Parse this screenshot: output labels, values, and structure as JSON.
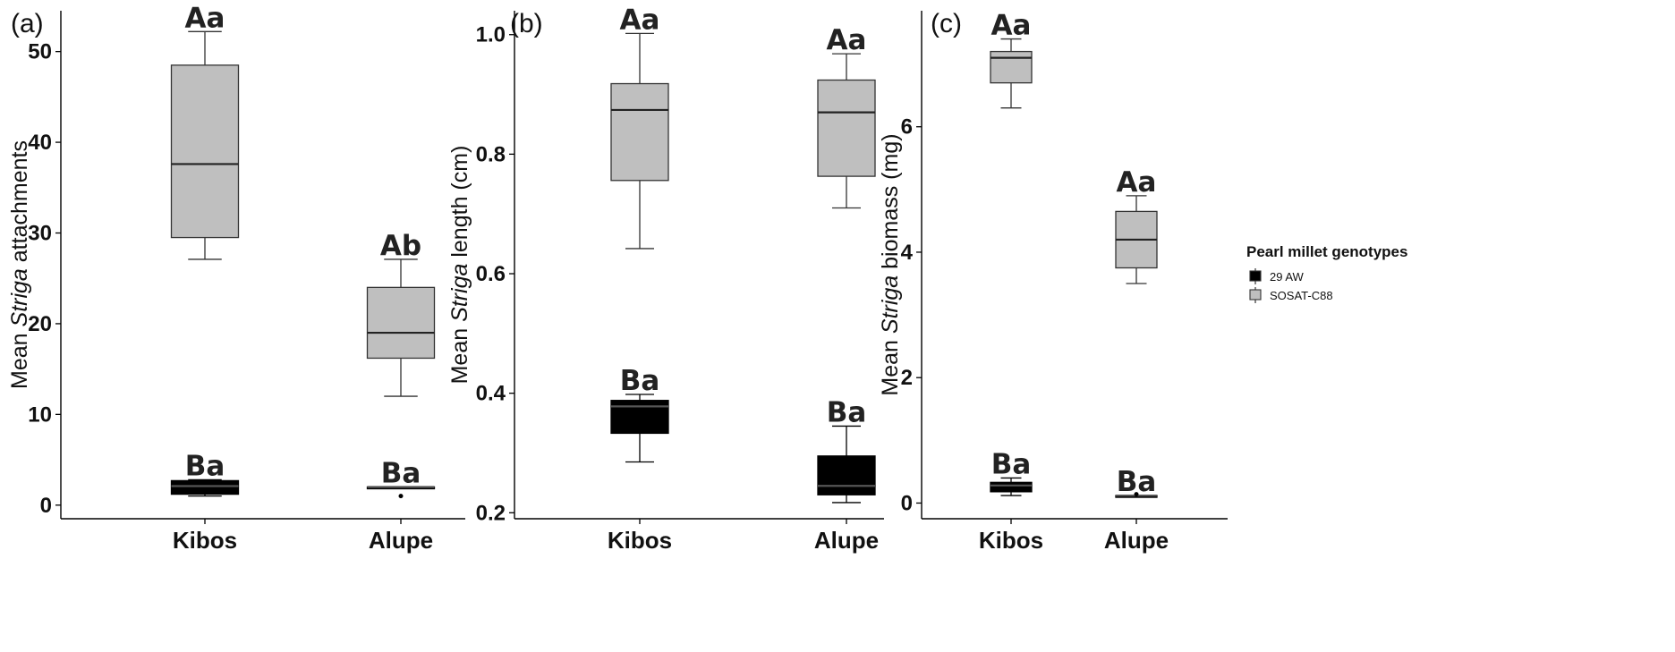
{
  "colors": {
    "black_box": "#000000",
    "grey_box": "#bfbfbf",
    "grey_line": "#333333",
    "axis": "#000000"
  },
  "legend": {
    "title": "Pearl millet genotypes",
    "items": [
      {
        "label": "29 AW",
        "color": "#000000"
      },
      {
        "label": "SOSAT-C88",
        "color": "#bfbfbf"
      }
    ]
  },
  "chart_data": [
    {
      "type": "box",
      "panel_label": "(a)",
      "ylabel_prefix": "Mean ",
      "ylabel_italic": "Striga",
      "ylabel_suffix": " attachments",
      "ylim": [
        -1.5,
        54.5
      ],
      "yticks": [
        0,
        10,
        20,
        30,
        40,
        50
      ],
      "categories": [
        "Kibos",
        "Alupe"
      ],
      "series": [
        {
          "genotype": "29 AW",
          "color": "#000000",
          "boxes": [
            {
              "category": "Kibos",
              "min": 1.0,
              "q1": 1.2,
              "median": 2.1,
              "q3": 2.7,
              "max": 2.8,
              "outliers": [],
              "letter": "Ba"
            },
            {
              "category": "Alupe",
              "min": 2.0,
              "q1": 2.0,
              "median": 2.0,
              "q3": 2.0,
              "max": 2.0,
              "outliers": [
                1.0
              ],
              "letter": "Ba"
            }
          ]
        },
        {
          "genotype": "SOSAT-C88",
          "color": "#bfbfbf",
          "boxes": [
            {
              "category": "Kibos",
              "min": 27.1,
              "q1": 29.5,
              "median": 37.6,
              "q3": 48.5,
              "max": 52.2,
              "outliers": [],
              "letter": "Aa"
            },
            {
              "category": "Alupe",
              "min": 12.0,
              "q1": 16.2,
              "median": 19.0,
              "q3": 24.0,
              "max": 27.1,
              "outliers": [],
              "letter": "Ab"
            }
          ]
        }
      ]
    },
    {
      "type": "box",
      "panel_label": "(b)",
      "ylabel_prefix": "Mean ",
      "ylabel_italic": "Striga",
      "ylabel_suffix": " length (cm)",
      "ylim": [
        0.19,
        1.04
      ],
      "yticks": [
        0.2,
        0.4,
        0.6,
        0.8,
        1.0
      ],
      "ytick_labels": [
        "0.2",
        "0.4",
        "0.6",
        "0.8",
        "1.0"
      ],
      "categories": [
        "Kibos",
        "Alupe"
      ],
      "series": [
        {
          "genotype": "29 AW",
          "color": "#000000",
          "boxes": [
            {
              "category": "Kibos",
              "min": 0.285,
              "q1": 0.333,
              "median": 0.378,
              "q3": 0.388,
              "max": 0.398,
              "outliers": [],
              "letter": "Ba"
            },
            {
              "category": "Alupe",
              "min": 0.217,
              "q1": 0.23,
              "median": 0.245,
              "q3": 0.295,
              "max": 0.345,
              "outliers": [],
              "letter": "Ba"
            }
          ]
        },
        {
          "genotype": "SOSAT-C88",
          "color": "#bfbfbf",
          "boxes": [
            {
              "category": "Kibos",
              "min": 0.642,
              "q1": 0.756,
              "median": 0.874,
              "q3": 0.918,
              "max": 1.002,
              "outliers": [],
              "letter": "Aa"
            },
            {
              "category": "Alupe",
              "min": 0.71,
              "q1": 0.763,
              "median": 0.87,
              "q3": 0.924,
              "max": 0.968,
              "outliers": [],
              "letter": "Aa"
            }
          ]
        }
      ]
    },
    {
      "type": "box",
      "panel_label": "(c)",
      "ylabel_prefix": "Mean ",
      "ylabel_italic": "Striga",
      "ylabel_suffix": " biomass (mg)",
      "ylim": [
        -0.25,
        7.85
      ],
      "yticks": [
        0,
        2,
        4,
        6
      ],
      "categories": [
        "Kibos",
        "Alupe"
      ],
      "series": [
        {
          "genotype": "29 AW",
          "color": "#000000",
          "boxes": [
            {
              "category": "Kibos",
              "min": 0.12,
              "q1": 0.18,
              "median": 0.28,
              "q3": 0.33,
              "max": 0.4,
              "outliers": [],
              "letter": "Ba"
            },
            {
              "category": "Alupe",
              "min": 0.12,
              "q1": 0.12,
              "median": 0.12,
              "q3": 0.12,
              "max": 0.12,
              "outliers": [
                0.14
              ],
              "letter": "Ba"
            }
          ]
        },
        {
          "genotype": "SOSAT-C88",
          "color": "#bfbfbf",
          "boxes": [
            {
              "category": "Kibos",
              "min": 6.3,
              "q1": 6.7,
              "median": 7.1,
              "q3": 7.2,
              "max": 7.4,
              "outliers": [],
              "letter": "Aa"
            },
            {
              "category": "Alupe",
              "min": 3.5,
              "q1": 3.75,
              "median": 4.2,
              "q3": 4.65,
              "max": 4.9,
              "outliers": [],
              "letter": "Aa"
            }
          ]
        }
      ]
    }
  ]
}
